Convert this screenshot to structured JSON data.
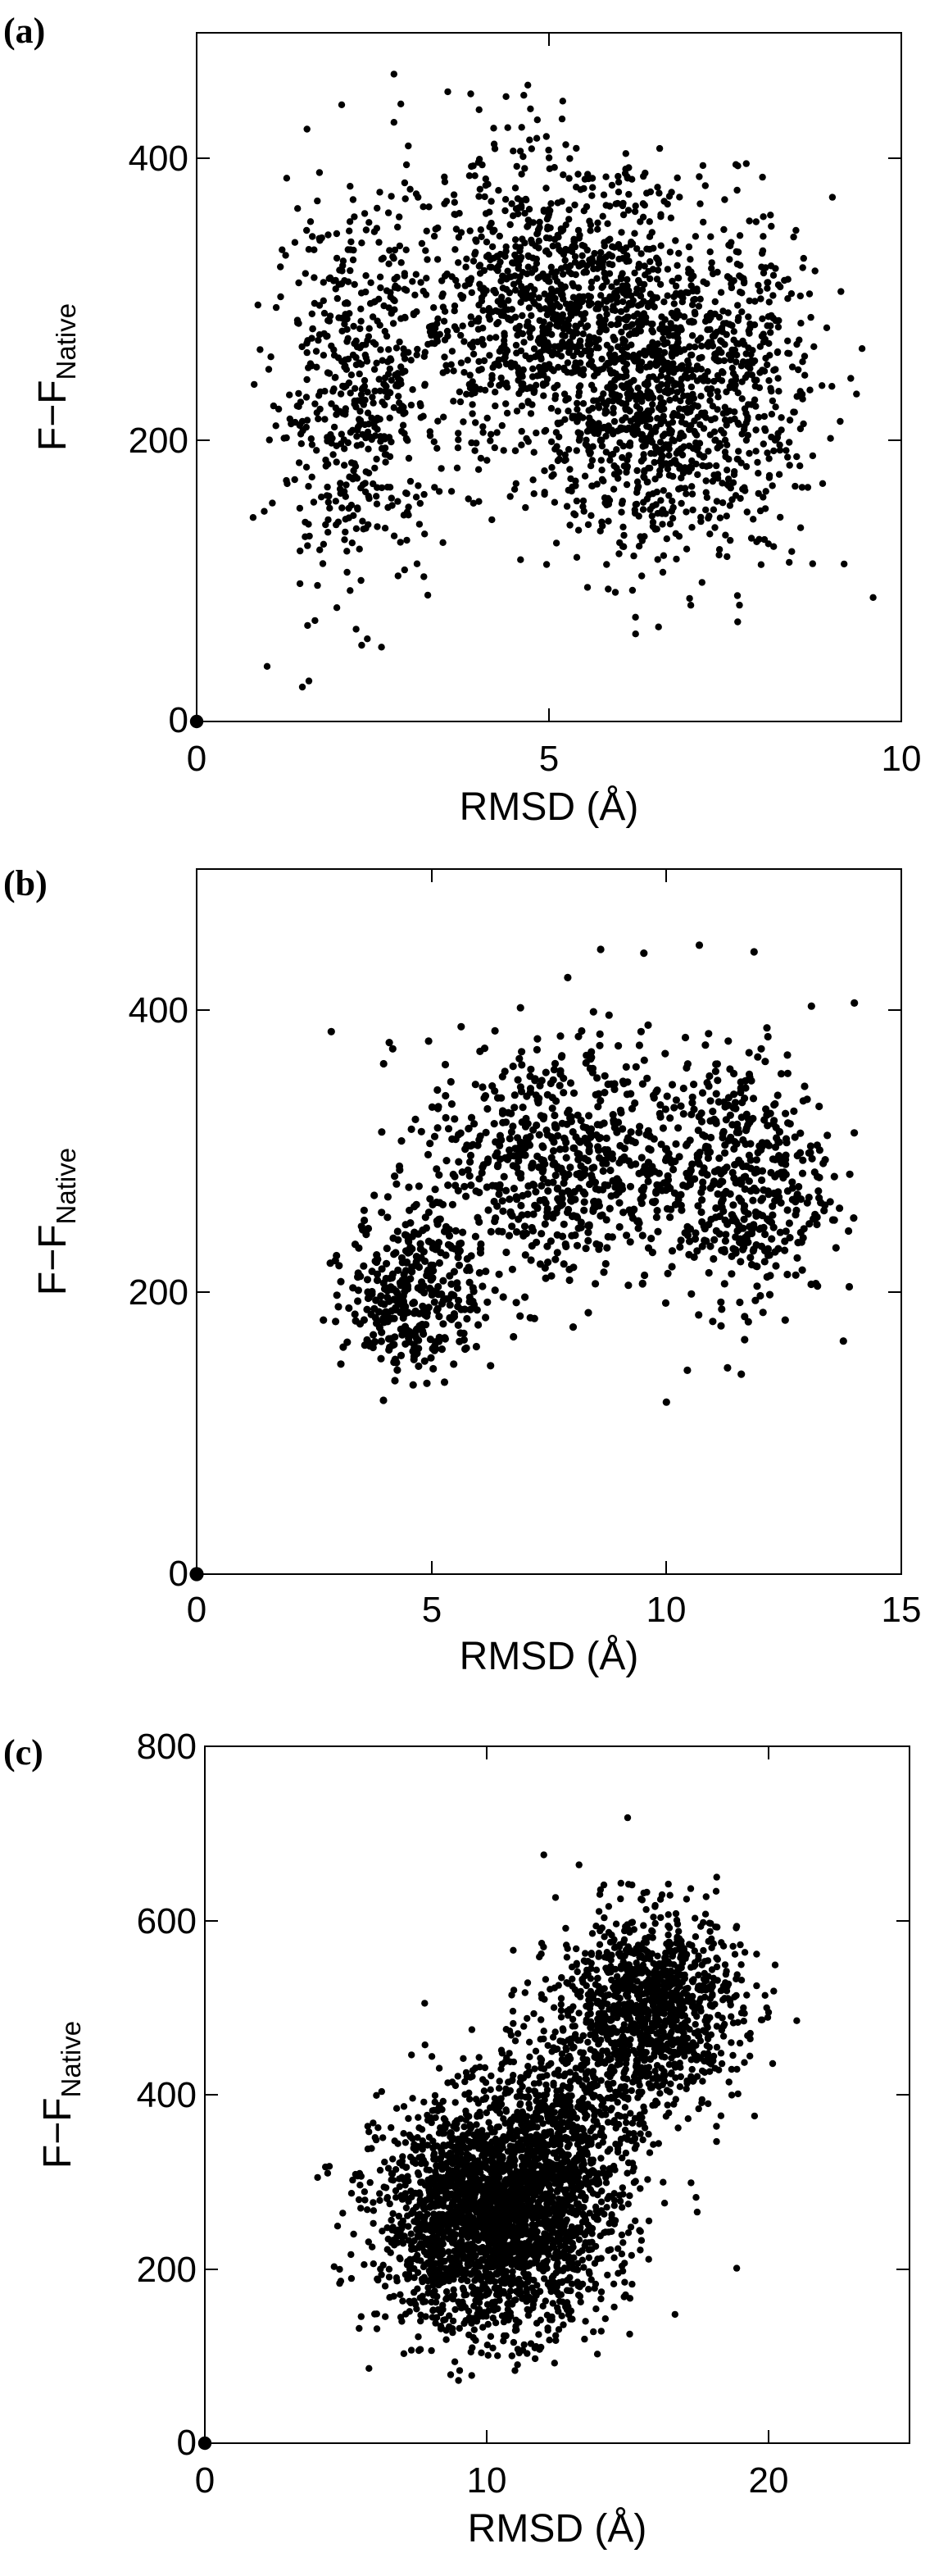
{
  "chart_data": [
    {
      "type": "scatter",
      "panel_label": "(a)",
      "xlabel": "RMSD (Å)",
      "ylabel": "F−F",
      "ylabel_sub": "Native",
      "xlim": [
        0,
        10
      ],
      "ylim": [
        0,
        500
      ],
      "xticks": [
        0,
        5,
        10
      ],
      "yticks": [
        0,
        200,
        400
      ],
      "grid": false,
      "legend": "none",
      "marker_color": "#000000",
      "native_point": {
        "x": 0,
        "y": 0
      },
      "clusters": [
        {
          "x_center": 2.3,
          "x_spread": 0.6,
          "y_center": 240,
          "y_spread": 70,
          "count": 550
        },
        {
          "x_center": 4.9,
          "x_spread": 0.9,
          "y_center": 300,
          "y_spread": 55,
          "count": 900
        },
        {
          "x_center": 6.5,
          "x_spread": 0.8,
          "y_center": 240,
          "y_spread": 60,
          "count": 1000
        },
        {
          "x_center": 7.8,
          "x_spread": 0.6,
          "y_center": 250,
          "y_spread": 60,
          "count": 250
        }
      ],
      "x_range": [
        0.8,
        9.6
      ],
      "y_range": [
        20,
        470
      ],
      "points": [
        {
          "x": 2.8,
          "y": 470
        },
        {
          "x": 4.7,
          "y": 462
        },
        {
          "x": 1.0,
          "y": 40
        },
        {
          "x": 1.5,
          "y": 25
        },
        {
          "x": 9.6,
          "y": 90
        },
        {
          "x": 0.9,
          "y": 270
        },
        {
          "x": 2.8,
          "y": 435
        },
        {
          "x": 7.8,
          "y": 405
        }
      ]
    },
    {
      "type": "scatter",
      "panel_label": "(b)",
      "xlabel": "RMSD (Å)",
      "ylabel": "F−F",
      "ylabel_sub": "Native",
      "xlim": [
        0,
        15
      ],
      "ylim": [
        0,
        500
      ],
      "xticks": [
        0,
        5,
        10,
        15
      ],
      "yticks": [
        0,
        200,
        400
      ],
      "grid": false,
      "legend": "none",
      "marker_color": "#000000",
      "native_point": {
        "x": 0,
        "y": 0
      },
      "clusters": [
        {
          "x_center": 4.6,
          "x_spread": 0.7,
          "y_center": 200,
          "y_spread": 30,
          "count": 350
        },
        {
          "x_center": 7.6,
          "x_spread": 1.4,
          "y_center": 290,
          "y_spread": 45,
          "count": 650
        },
        {
          "x_center": 11.5,
          "x_spread": 1.0,
          "y_center": 280,
          "y_spread": 45,
          "count": 500
        }
      ],
      "x_range": [
        2.6,
        14.2
      ],
      "y_range": [
        110,
        450
      ],
      "points": [
        {
          "x": 8.6,
          "y": 443
        },
        {
          "x": 10.7,
          "y": 446
        },
        {
          "x": 10.0,
          "y": 122
        },
        {
          "x": 4.1,
          "y": 377
        },
        {
          "x": 14.0,
          "y": 405
        },
        {
          "x": 7.9,
          "y": 423
        }
      ]
    },
    {
      "type": "scatter",
      "panel_label": "(c)",
      "xlabel": "RMSD (Å)",
      "ylabel": "F−F",
      "ylabel_sub": "Native",
      "xlim": [
        0,
        25
      ],
      "ylim": [
        0,
        800
      ],
      "xticks": [
        0,
        10,
        20
      ],
      "yticks": [
        0,
        200,
        400,
        600,
        800
      ],
      "grid": false,
      "legend": "none",
      "marker_color": "#000000",
      "native_point": {
        "x": 0,
        "y": 0
      },
      "clusters": [
        {
          "x_center": 10.3,
          "x_spread": 2.0,
          "y_center": 260,
          "y_spread": 65,
          "count": 2600
        },
        {
          "x_center": 15.8,
          "x_spread": 1.6,
          "y_center": 500,
          "y_spread": 55,
          "count": 1100
        },
        {
          "x_center": 13.0,
          "x_spread": 1.4,
          "y_center": 380,
          "y_spread": 60,
          "count": 500
        }
      ],
      "x_range": [
        3.6,
        21.0
      ],
      "y_range": [
        70,
        720
      ],
      "points": [
        {
          "x": 15.0,
          "y": 718
        },
        {
          "x": 4.0,
          "y": 305
        },
        {
          "x": 21.0,
          "y": 485
        },
        {
          "x": 9.0,
          "y": 72
        },
        {
          "x": 7.8,
          "y": 505
        }
      ]
    }
  ]
}
